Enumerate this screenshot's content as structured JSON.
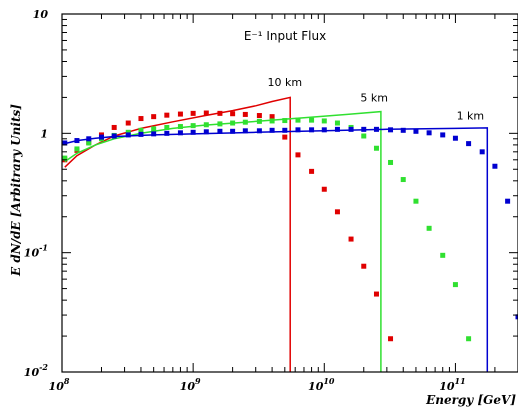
{
  "chart_data": {
    "type": "line",
    "title": "E⁻¹ Input Flux",
    "xlabel": "Energy [GeV]",
    "ylabel": "E dN/dE [Arbitrary Units]",
    "xscale": "log",
    "yscale": "log",
    "xlim": [
      100000000.0,
      300000000000.0
    ],
    "ylim": [
      0.01,
      10
    ],
    "x_ticks": [
      {
        "value": 100000000.0,
        "base": "10",
        "exp": "8"
      },
      {
        "value": 1000000000.0,
        "base": "10",
        "exp": "9"
      },
      {
        "value": 10000000000.0,
        "base": "10",
        "exp": "10"
      },
      {
        "value": 100000000000.0,
        "base": "10",
        "exp": "11"
      }
    ],
    "y_ticks": [
      {
        "value": 10,
        "base": "10",
        "exp": ""
      },
      {
        "value": 1,
        "base": "1",
        "exp": ""
      },
      {
        "value": 0.1,
        "base": "10",
        "exp": "-1"
      },
      {
        "value": 0.01,
        "base": "10",
        "exp": "-2"
      }
    ],
    "annotations": [
      {
        "text": "10 km",
        "x": 5000000000.0,
        "y": 2.5
      },
      {
        "text": "5 km",
        "x": 24000000000.0,
        "y": 1.85
      },
      {
        "text": "1 km",
        "x": 130000000000.0,
        "y": 1.3
      }
    ],
    "series": [
      {
        "color": "#e00000",
        "line": [
          [
            105000000.0,
            0.52
          ],
          [
            130000000.0,
            0.65
          ],
          [
            180000000.0,
            0.8
          ],
          [
            250000000.0,
            0.95
          ],
          [
            400000000.0,
            1.1
          ],
          [
            700000000.0,
            1.25
          ],
          [
            1200000000.0,
            1.4
          ],
          [
            2000000000.0,
            1.55
          ],
          [
            3000000000.0,
            1.7
          ],
          [
            4000000000.0,
            1.85
          ],
          [
            5500000000.0,
            2.0
          ],
          [
            5500000000.0,
            0.01
          ]
        ],
        "points": [
          [
            105000000.0,
            0.6
          ],
          [
            130000000.0,
            0.72
          ],
          [
            160000000.0,
            0.84
          ],
          [
            200000000.0,
            0.97
          ],
          [
            250000000.0,
            1.12
          ],
          [
            320000000.0,
            1.22
          ],
          [
            400000000.0,
            1.33
          ],
          [
            500000000.0,
            1.38
          ],
          [
            630000000.0,
            1.42
          ],
          [
            800000000.0,
            1.45
          ],
          [
            1000000000.0,
            1.47
          ],
          [
            1260000000.0,
            1.48
          ],
          [
            1600000000.0,
            1.47
          ],
          [
            2000000000.0,
            1.46
          ],
          [
            2500000000.0,
            1.44
          ],
          [
            3200000000.0,
            1.41
          ],
          [
            4000000000.0,
            1.38
          ],
          [
            5000000000.0,
            0.93
          ],
          [
            6300000000.0,
            0.66
          ],
          [
            8000000000.0,
            0.48
          ],
          [
            10000000000.0,
            0.34
          ],
          [
            12600000000.0,
            0.22
          ],
          [
            16000000000.0,
            0.13
          ],
          [
            20000000000.0,
            0.077
          ],
          [
            25000000000.0,
            0.045
          ],
          [
            32000000000.0,
            0.019
          ]
        ]
      },
      {
        "color": "#30e030",
        "line": [
          [
            105000000.0,
            0.58
          ],
          [
            130000000.0,
            0.68
          ],
          [
            180000000.0,
            0.8
          ],
          [
            250000000.0,
            0.9
          ],
          [
            400000000.0,
            1.0
          ],
          [
            700000000.0,
            1.1
          ],
          [
            1200000000.0,
            1.17
          ],
          [
            3000000000.0,
            1.26
          ],
          [
            7000000000.0,
            1.35
          ],
          [
            15000000000.0,
            1.44
          ],
          [
            27000000000.0,
            1.52
          ],
          [
            27000000000.0,
            0.01
          ]
        ],
        "points": [
          [
            105000000.0,
            0.62
          ],
          [
            130000000.0,
            0.74
          ],
          [
            160000000.0,
            0.83
          ],
          [
            200000000.0,
            0.9
          ],
          [
            250000000.0,
            0.96
          ],
          [
            320000000.0,
            1.02
          ],
          [
            400000000.0,
            1.06
          ],
          [
            500000000.0,
            1.09
          ],
          [
            630000000.0,
            1.12
          ],
          [
            800000000.0,
            1.14
          ],
          [
            1000000000.0,
            1.16
          ],
          [
            1260000000.0,
            1.18
          ],
          [
            1600000000.0,
            1.2
          ],
          [
            2000000000.0,
            1.22
          ],
          [
            2500000000.0,
            1.24
          ],
          [
            3200000000.0,
            1.26
          ],
          [
            4000000000.0,
            1.27
          ],
          [
            5000000000.0,
            1.28
          ],
          [
            6300000000.0,
            1.29
          ],
          [
            8000000000.0,
            1.29
          ],
          [
            10000000000.0,
            1.27
          ],
          [
            12600000000.0,
            1.22
          ],
          [
            16000000000.0,
            1.12
          ],
          [
            20000000000.0,
            0.95
          ],
          [
            25000000000.0,
            0.75
          ],
          [
            32000000000.0,
            0.57
          ],
          [
            40000000000.0,
            0.41
          ],
          [
            50000000000.0,
            0.27
          ],
          [
            63000000000.0,
            0.16
          ],
          [
            80000000000.0,
            0.095
          ],
          [
            100000000000.0,
            0.054
          ],
          [
            126000000000.0,
            0.019
          ]
        ]
      },
      {
        "color": "#0000d0",
        "line": [
          [
            105000000.0,
            0.82
          ],
          [
            130000000.0,
            0.87
          ],
          [
            180000000.0,
            0.91
          ],
          [
            250000000.0,
            0.94
          ],
          [
            500000000.0,
            0.97
          ],
          [
            1000000000.0,
            0.99
          ],
          [
            3000000000.0,
            1.02
          ],
          [
            10000000000.0,
            1.05
          ],
          [
            30000000000.0,
            1.08
          ],
          [
            100000000000.0,
            1.1
          ],
          [
            175000000000.0,
            1.11
          ],
          [
            175000000000.0,
            0.01
          ]
        ],
        "points": [
          [
            105000000.0,
            0.83
          ],
          [
            130000000.0,
            0.87
          ],
          [
            160000000.0,
            0.9
          ],
          [
            200000000.0,
            0.93
          ],
          [
            250000000.0,
            0.95
          ],
          [
            320000000.0,
            0.97
          ],
          [
            400000000.0,
            0.98
          ],
          [
            500000000.0,
            0.99
          ],
          [
            630000000.0,
            1.0
          ],
          [
            800000000.0,
            1.01
          ],
          [
            1000000000.0,
            1.02
          ],
          [
            1260000000.0,
            1.03
          ],
          [
            1600000000.0,
            1.04
          ],
          [
            2000000000.0,
            1.04
          ],
          [
            2500000000.0,
            1.05
          ],
          [
            3200000000.0,
            1.05
          ],
          [
            4000000000.0,
            1.06
          ],
          [
            5000000000.0,
            1.06
          ],
          [
            6300000000.0,
            1.07
          ],
          [
            8000000000.0,
            1.07
          ],
          [
            10000000000.0,
            1.07
          ],
          [
            12600000000.0,
            1.08
          ],
          [
            16000000000.0,
            1.08
          ],
          [
            20000000000.0,
            1.08
          ],
          [
            25000000000.0,
            1.08
          ],
          [
            32000000000.0,
            1.07
          ],
          [
            40000000000.0,
            1.06
          ],
          [
            50000000000.0,
            1.04
          ],
          [
            63000000000.0,
            1.01
          ],
          [
            80000000000.0,
            0.97
          ],
          [
            100000000000.0,
            0.91
          ],
          [
            126000000000.0,
            0.82
          ],
          [
            160000000000.0,
            0.7
          ],
          [
            200000000000.0,
            0.53
          ],
          [
            250000000000.0,
            0.27
          ],
          [
            300000000000.0,
            0.029
          ]
        ]
      }
    ]
  }
}
